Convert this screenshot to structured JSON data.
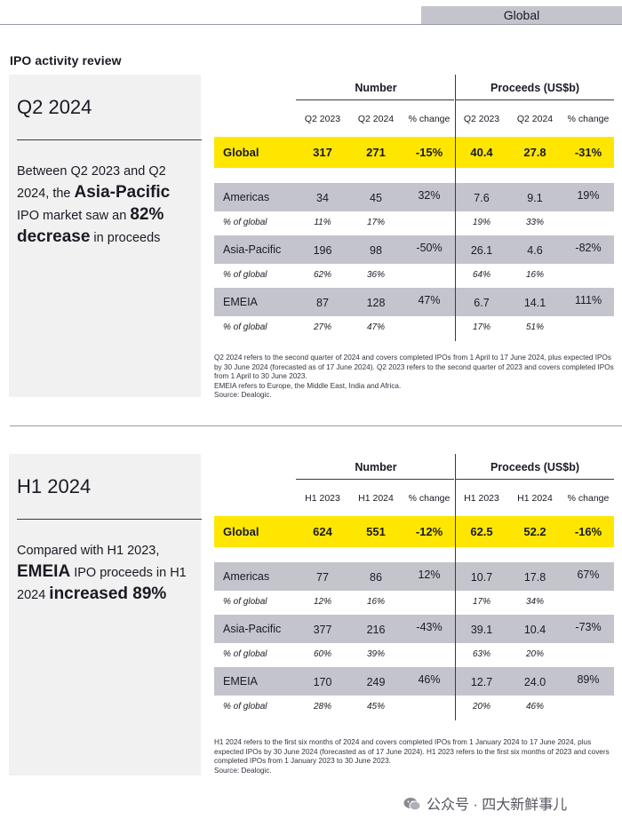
{
  "header": {
    "tab": "Global"
  },
  "review_title": "IPO activity review",
  "sections": [
    {
      "summary": {
        "title": "Q2 2024",
        "text_parts": [
          {
            "t": "Between Q2 2023 and Q2 2024, the ",
            "hl": false
          },
          {
            "t": "Asia-Pacific",
            "hl": true
          },
          {
            "t": " IPO market saw an ",
            "hl": false
          },
          {
            "t": "82% decrease",
            "hl": true
          },
          {
            "t": " in proceeds",
            "hl": false
          }
        ]
      },
      "table": {
        "groups": [
          "Number",
          "Proceeds (US$b)"
        ],
        "columns": [
          "Q2 2023",
          "Q2 2024",
          "% change",
          "Q2 2023",
          "Q2 2024",
          "% change"
        ],
        "global": {
          "label": "Global",
          "values": [
            "317",
            "271",
            "-15%",
            "40.4",
            "27.8",
            "-31%"
          ]
        },
        "regions": [
          {
            "label": "Americas",
            "values": [
              "34",
              "45",
              "32%",
              "7.6",
              "9.1",
              "19%"
            ],
            "pct_label": "% of global",
            "pct": [
              "11%",
              "17%",
              "19%",
              "33%"
            ]
          },
          {
            "label": "Asia-Pacific",
            "values": [
              "196",
              "98",
              "-50%",
              "26.1",
              "4.6",
              "-82%"
            ],
            "pct_label": "% of global",
            "pct": [
              "62%",
              "36%",
              "64%",
              "16%"
            ]
          },
          {
            "label": "EMEIA",
            "values": [
              "87",
              "128",
              "47%",
              "6.7",
              "14.1",
              "111%"
            ],
            "pct_label": "% of global",
            "pct": [
              "27%",
              "47%",
              "17%",
              "51%"
            ]
          }
        ]
      },
      "notes": [
        "Q2 2024 refers to the second quarter of 2024 and covers completed IPOs from 1 April to 17 June 2024, plus expected IPOs by 30 June 2024 (forecasted as of 17 June 2024). Q2 2023 refers to the second quarter of 2023 and covers completed IPOs from 1 April to 30 June 2023.",
        "EMEIA refers to Europe, the Middle East, India and Africa.",
        "Source: Dealogic."
      ]
    },
    {
      "summary": {
        "title": "H1 2024",
        "text_parts": [
          {
            "t": "Compared with H1 2023, ",
            "hl": false
          },
          {
            "t": "EMEIA",
            "hl": true
          },
          {
            "t": " IPO proceeds in H1 2024 ",
            "hl": false
          },
          {
            "t": "increased 89%",
            "hl": true
          }
        ]
      },
      "table": {
        "groups": [
          "Number",
          "Proceeds (US$b)"
        ],
        "columns": [
          "H1 2023",
          "H1 2024",
          "% change",
          "H1 2023",
          "H1 2024",
          "% change"
        ],
        "global": {
          "label": "Global",
          "values": [
            "624",
            "551",
            "-12%",
            "62.5",
            "52.2",
            "-16%"
          ]
        },
        "regions": [
          {
            "label": "Americas",
            "values": [
              "77",
              "86",
              "12%",
              "10.7",
              "17.8",
              "67%"
            ],
            "pct_label": "% of global",
            "pct": [
              "12%",
              "16%",
              "17%",
              "34%"
            ]
          },
          {
            "label": "Asia-Pacific",
            "values": [
              "377",
              "216",
              "-43%",
              "39.1",
              "10.4",
              "-73%"
            ],
            "pct_label": "% of global",
            "pct": [
              "60%",
              "39%",
              "63%",
              "20%"
            ]
          },
          {
            "label": "EMEIA",
            "values": [
              "170",
              "249",
              "46%",
              "12.7",
              "24.0",
              "89%"
            ],
            "pct_label": "% of global",
            "pct": [
              "28%",
              "45%",
              "20%",
              "46%"
            ]
          }
        ]
      },
      "notes": [
        "H1 2024 refers to the first six months of 2024 and covers completed IPOs from 1 January 2024 to 17 June 2024, plus expected IPOs by 30 June 2024 (forecasted as of 17 June 2024). H1 2023 refers to the first six months of 2023 and covers completed IPOs from 1 January 2023 to 30 June 2023.",
        "Source: Dealogic."
      ]
    }
  ],
  "watermark": {
    "text": "公众号 · 四大新鲜事儿",
    "icon": "wechat-icon"
  },
  "colors": {
    "global_row": "#ffe600",
    "region_row": "#c4c4cd",
    "summary_bg": "#f1f1f1",
    "tab_bg": "#c4c4cd"
  }
}
